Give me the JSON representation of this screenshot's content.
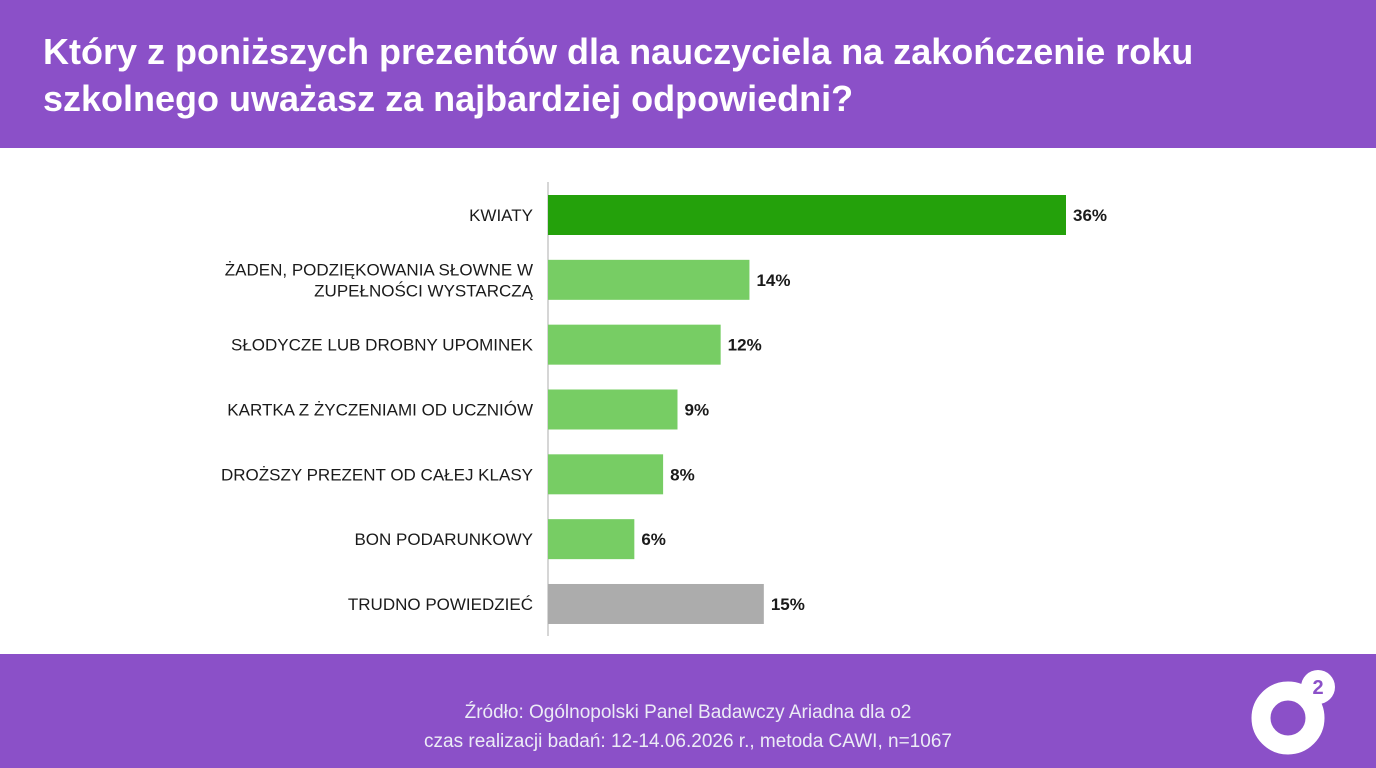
{
  "header": {
    "title_line1": "Który z poniższych prezentów dla nauczyciela na zakończenie roku",
    "title_line2": "szkolnego uważasz za najbardziej odpowiedni?"
  },
  "chart_data": {
    "type": "bar",
    "orientation": "horizontal",
    "title": "Który z poniższych prezentów dla nauczyciela na zakończenie roku szkolnego uważasz za najbardziej odpowiedni?",
    "unit": "%",
    "xlim": [
      0,
      36
    ],
    "grid": false,
    "legend": "none",
    "categories": [
      "KWIATY",
      "ŻADEN, PODZIĘKOWANIA SŁOWNE W ZUPEŁNOŚCI WYSTARCZĄ",
      "SŁODYCZE LUB DROBNY UPOMINEK",
      "KARTKA Z ŻYCZENIAMI OD UCZNIÓW",
      "DROŻSZY PREZENT OD CAŁEJ KLASY",
      "BON PODARUNKOWY",
      "TRUDNO POWIEDZIEĆ"
    ],
    "values": [
      36,
      14,
      12,
      9,
      8,
      6,
      15
    ],
    "value_labels": [
      "36%",
      "14%",
      "12%",
      "9%",
      "8%",
      "6%",
      "15%"
    ],
    "colors": [
      "#24a10b",
      "#77cd64",
      "#77cd64",
      "#77cd64",
      "#77cd64",
      "#77cd64",
      "#acacac"
    ]
  },
  "footer": {
    "source_line1": "Źródło: Ogólnopolski Panel Badawczy Ariadna dla o2",
    "source_line2": "czas realizacji badań: 12-14.06.2026 r., metoda CAWI, n=1067"
  },
  "logo": {
    "mark": "o",
    "superscript": "2"
  },
  "colors": {
    "header_bg": "#8b50c8",
    "footer_bg": "#8b50c8",
    "highlight_bar": "#24a10b",
    "bar": "#77cd64",
    "neutral_bar": "#acacac"
  }
}
